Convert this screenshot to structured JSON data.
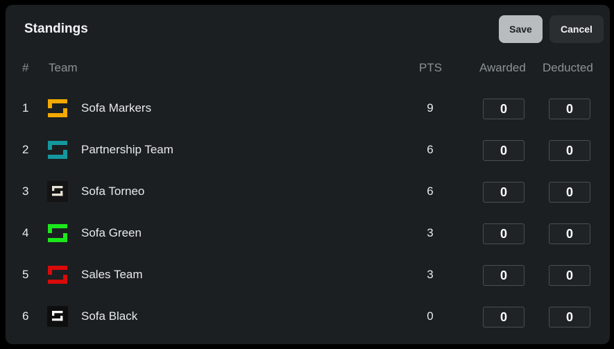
{
  "header": {
    "title": "Standings",
    "save_label": "Save",
    "cancel_label": "Cancel"
  },
  "columns": {
    "rank": "#",
    "team": "Team",
    "pts": "PTS",
    "awarded": "Awarded",
    "deducted": "Deducted"
  },
  "rows": [
    {
      "rank": "1",
      "team": "Sofa Markers",
      "pts": "9",
      "awarded": "0",
      "deducted": "0",
      "logo_color": "#f2a900",
      "logo_bg": "none"
    },
    {
      "rank": "2",
      "team": "Partnership Team",
      "pts": "6",
      "awarded": "0",
      "deducted": "0",
      "logo_color": "#14989e",
      "logo_bg": "none"
    },
    {
      "rank": "3",
      "team": "Sofa Torneo",
      "pts": "6",
      "awarded": "0",
      "deducted": "0",
      "logo_color": "#e8e4d8",
      "logo_bg": "#141414"
    },
    {
      "rank": "4",
      "team": "Sofa Green",
      "pts": "3",
      "awarded": "0",
      "deducted": "0",
      "logo_color": "#1be81b",
      "logo_bg": "none"
    },
    {
      "rank": "5",
      "team": "Sales Team",
      "pts": "3",
      "awarded": "0",
      "deducted": "0",
      "logo_color": "#d90a0a",
      "logo_bg": "none"
    },
    {
      "rank": "6",
      "team": "Sofa Black",
      "pts": "0",
      "awarded": "0",
      "deducted": "0",
      "logo_color": "#ffffff",
      "logo_bg": "#0e0e0e"
    }
  ]
}
